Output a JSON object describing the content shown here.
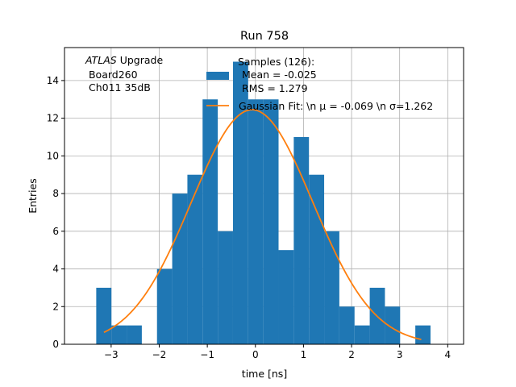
{
  "chart_data": {
    "type": "bar",
    "title": "Run 758",
    "xlabel": "time [ns]",
    "ylabel": "Entries",
    "xlim": [
      -3.97,
      4.33
    ],
    "ylim": [
      0,
      15.75
    ],
    "xticks": [
      -3,
      -2,
      -1,
      0,
      1,
      2,
      3,
      4
    ],
    "xtick_labels": [
      "−3",
      "−2",
      "−1",
      "0",
      "1",
      "2",
      "3",
      "4"
    ],
    "yticks": [
      0,
      2,
      4,
      6,
      8,
      10,
      12,
      14
    ],
    "ytick_labels": [
      "0",
      "2",
      "4",
      "6",
      "8",
      "10",
      "12",
      "14"
    ],
    "grid": true,
    "histogram": {
      "bin_start": -3.31,
      "bin_width": 0.316,
      "counts": [
        3,
        1,
        1,
        0,
        4,
        8,
        9,
        13,
        6,
        15,
        13,
        13,
        5,
        11,
        9,
        6,
        2,
        1,
        3,
        2,
        0,
        1
      ],
      "color": "#1f77b4"
    },
    "fit": {
      "type": "gaussian",
      "amplitude": 12.45,
      "mu": -0.069,
      "sigma": 1.262,
      "x_range": [
        -3.15,
        3.45
      ],
      "color": "#ff7f0e"
    },
    "legend": {
      "placement": "top-center",
      "entries": [
        {
          "lines": [
            "Samples (126):",
            " Mean = -0.025",
            " RMS = 1.279"
          ],
          "kind": "patch"
        },
        {
          "lines": [
            "Gaussian Fit: \\n μ = -0.069 \\n σ=1.262"
          ],
          "kind": "line"
        }
      ]
    },
    "annotation": {
      "lines": [
        "ATLAS",
        " Upgrade",
        " Board260",
        " Ch011 35dB"
      ]
    }
  }
}
